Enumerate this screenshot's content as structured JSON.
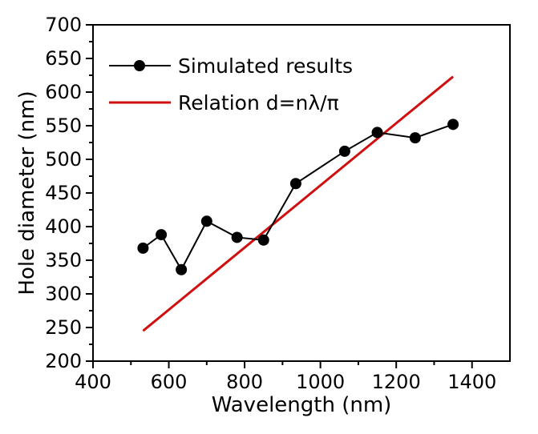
{
  "chart_data": {
    "type": "line",
    "title": "",
    "xlabel": "Wavelength (nm)",
    "ylabel": "Hole diameter (nm)",
    "xlim": [
      400,
      1500
    ],
    "ylim": [
      200,
      700
    ],
    "xticks": [
      400,
      600,
      800,
      1000,
      1200,
      1400
    ],
    "yticks": [
      200,
      250,
      300,
      350,
      400,
      450,
      500,
      550,
      600,
      650,
      700
    ],
    "grid": false,
    "legend_position": "top-left",
    "series": [
      {
        "name": "Simulated results",
        "style": "line-with-markers",
        "color": "#000000",
        "x": [
          532,
          580,
          633,
          700,
          780,
          850,
          935,
          1064,
          1150,
          1250,
          1350
        ],
        "y": [
          368,
          388,
          336,
          408,
          384,
          380,
          464,
          512,
          540,
          532,
          552
        ]
      },
      {
        "name": "Relation d=nλ/π",
        "style": "line",
        "color": "#d01010",
        "x": [
          532,
          1350
        ],
        "y": [
          245,
          623
        ]
      }
    ]
  }
}
